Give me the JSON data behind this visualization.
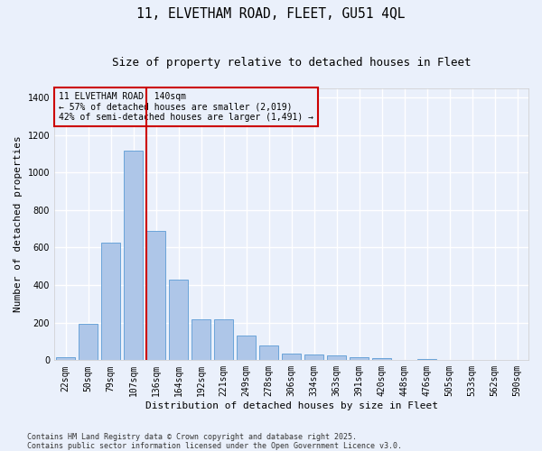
{
  "title_line1": "11, ELVETHAM ROAD, FLEET, GU51 4QL",
  "title_line2": "Size of property relative to detached houses in Fleet",
  "xlabel": "Distribution of detached houses by size in Fleet",
  "ylabel": "Number of detached properties",
  "categories": [
    "22sqm",
    "50sqm",
    "79sqm",
    "107sqm",
    "136sqm",
    "164sqm",
    "192sqm",
    "221sqm",
    "249sqm",
    "278sqm",
    "306sqm",
    "334sqm",
    "363sqm",
    "391sqm",
    "420sqm",
    "448sqm",
    "476sqm",
    "505sqm",
    "533sqm",
    "562sqm",
    "590sqm"
  ],
  "values": [
    15,
    195,
    625,
    1115,
    690,
    430,
    220,
    220,
    130,
    80,
    35,
    30,
    25,
    15,
    12,
    0,
    5,
    0,
    0,
    0,
    0
  ],
  "bar_color": "#aec6e8",
  "bar_edgecolor": "#5b9bd5",
  "background_color": "#eaf0fb",
  "grid_color": "#ffffff",
  "vline_x_index": 4,
  "vline_color": "#cc0000",
  "annotation_text": "11 ELVETHAM ROAD: 140sqm\n← 57% of detached houses are smaller (2,019)\n42% of semi-detached houses are larger (1,491) →",
  "annotation_box_color": "#cc0000",
  "ylim": [
    0,
    1450
  ],
  "yticks": [
    0,
    200,
    400,
    600,
    800,
    1000,
    1200,
    1400
  ],
  "footer_text": "Contains HM Land Registry data © Crown copyright and database right 2025.\nContains public sector information licensed under the Open Government Licence v3.0.",
  "title_fontsize": 10.5,
  "subtitle_fontsize": 9,
  "axis_label_fontsize": 8,
  "tick_fontsize": 7,
  "annotation_fontsize": 7,
  "footer_fontsize": 6,
  "ylabel_fontsize": 8
}
